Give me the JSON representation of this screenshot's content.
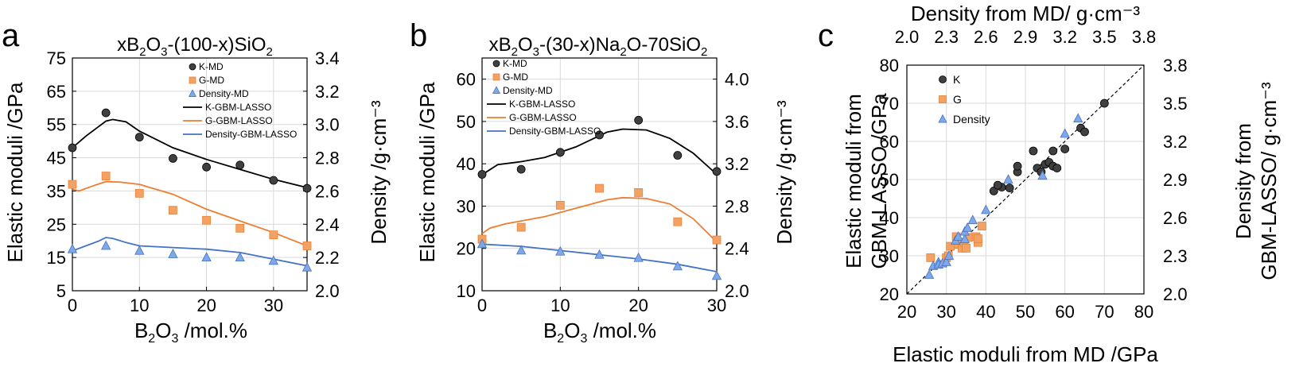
{
  "colors": {
    "k": "#404040",
    "g": "#F4A263",
    "density": "#7FA8E8",
    "k_line": "#000000",
    "g_line": "#EE7D31",
    "density_line": "#4472C4",
    "grid": "#d9d9d9"
  },
  "chart_data": [
    {
      "type": "scatter",
      "panel": "a",
      "title_parts": [
        "xB",
        "2",
        "O",
        "3",
        "-(100-x)SiO",
        "2"
      ],
      "xlabel_parts": [
        "B",
        "2",
        "O",
        "3",
        " /mol.%"
      ],
      "ylabel_left": "Elastic moduli /GPa",
      "ylabel_right": "Density /g·cm⁻³",
      "xlim": [
        0,
        35
      ],
      "xticks": [
        0,
        10,
        20,
        30
      ],
      "ylim_left": [
        5,
        75
      ],
      "yticks_left": [
        5,
        15,
        25,
        35,
        45,
        55,
        65,
        75
      ],
      "ylim_right": [
        2.0,
        3.4
      ],
      "yticks_right": [
        "2.0",
        "2.2",
        "2.4",
        "2.6",
        "2.8",
        "3.0",
        "3.2",
        "3.4"
      ],
      "legend": [
        "K-MD",
        "G-MD",
        "Density-MD",
        "K-GBM-LASSO",
        "G-GBM-LASSO",
        "Density-GBM-LASSO"
      ],
      "series": [
        {
          "name": "K-MD",
          "axis": "left",
          "marker": "circle",
          "x": [
            0,
            5,
            10,
            15,
            20,
            25,
            30,
            35
          ],
          "y": [
            48,
            58.5,
            51.2,
            44.8,
            42.2,
            42.8,
            38.2,
            35.8
          ]
        },
        {
          "name": "G-MD",
          "axis": "left",
          "marker": "square",
          "x": [
            0,
            5,
            10,
            15,
            20,
            25,
            30,
            35
          ],
          "y": [
            37,
            39.5,
            34.3,
            29.2,
            26.2,
            23.8,
            21.8,
            18.5
          ]
        },
        {
          "name": "Density-MD",
          "axis": "right",
          "marker": "triangle",
          "x": [
            0,
            5,
            10,
            15,
            20,
            25,
            30,
            35
          ],
          "y": [
            2.25,
            2.27,
            2.24,
            2.22,
            2.2,
            2.2,
            2.18,
            2.14
          ]
        },
        {
          "name": "K-GBM-LASSO",
          "axis": "left",
          "line": true,
          "x": [
            0,
            2,
            4,
            5,
            6,
            8,
            10,
            15,
            20,
            25,
            30,
            35
          ],
          "y": [
            48,
            51.5,
            54.5,
            56,
            56.5,
            55.8,
            53,
            48,
            44.5,
            41.5,
            38.5,
            36
          ]
        },
        {
          "name": "G-GBM-LASSO",
          "axis": "left",
          "line": true,
          "x": [
            0,
            1,
            3,
            5,
            7,
            10,
            15,
            20,
            25,
            30,
            35
          ],
          "y": [
            35.5,
            35,
            36.5,
            37.8,
            37.7,
            37,
            34,
            29.5,
            26,
            22.5,
            18.5
          ]
        },
        {
          "name": "Density-GBM-LASSO",
          "axis": "right",
          "line": true,
          "x": [
            0,
            2,
            4,
            5,
            6,
            8,
            10,
            15,
            20,
            25,
            30,
            35
          ],
          "y": [
            2.24,
            2.27,
            2.3,
            2.32,
            2.315,
            2.29,
            2.27,
            2.26,
            2.25,
            2.23,
            2.19,
            2.15
          ]
        }
      ]
    },
    {
      "type": "scatter",
      "panel": "b",
      "title_parts": [
        "xB",
        "2",
        "O",
        "3",
        "-(30-x)Na",
        "2",
        "O-70SiO",
        "2"
      ],
      "xlabel_parts": [
        "B",
        "2",
        "O",
        "3",
        " /mol.%"
      ],
      "ylabel_left": "Elastic moduli /GPa",
      "ylabel_right": "Density /g·cm⁻³",
      "xlim": [
        0,
        30
      ],
      "xticks": [
        0,
        10,
        20,
        30
      ],
      "ylim_left": [
        10,
        65
      ],
      "yticks_left": [
        10,
        20,
        30,
        40,
        50,
        60
      ],
      "ylim_right": [
        2.0,
        4.2
      ],
      "yticks_right": [
        "2.0",
        "2.4",
        "2.8",
        "3.2",
        "3.6",
        "4.0"
      ],
      "legend": [
        "K-MD",
        "G-MD",
        "Density-MD",
        "K-GBM-LASSO",
        "G-GBM-LASSO",
        "Density-GBM-LASSO"
      ],
      "series": [
        {
          "name": "K-MD",
          "axis": "left",
          "marker": "circle",
          "x": [
            0,
            5,
            10,
            15,
            20,
            25,
            30
          ],
          "y": [
            37.5,
            38.7,
            42.7,
            46.8,
            50.3,
            42,
            38.2
          ]
        },
        {
          "name": "G-MD",
          "axis": "left",
          "marker": "square",
          "x": [
            0,
            5,
            10,
            15,
            20,
            25,
            30
          ],
          "y": [
            22.2,
            25,
            30.2,
            34.2,
            33.2,
            26.3,
            22
          ]
        },
        {
          "name": "Density-MD",
          "axis": "right",
          "marker": "triangle",
          "x": [
            0,
            5,
            10,
            15,
            20,
            25,
            30
          ],
          "y": [
            2.44,
            2.38,
            2.37,
            2.34,
            2.31,
            2.23,
            2.14
          ]
        },
        {
          "name": "K-GBM-LASSO",
          "axis": "left",
          "line": true,
          "x": [
            0,
            0.5,
            2,
            5,
            8,
            12,
            16,
            18,
            21,
            24,
            27,
            30
          ],
          "y": [
            37.5,
            38,
            39.8,
            40.5,
            41.5,
            44,
            47.5,
            48.2,
            48,
            46,
            42.5,
            37.5
          ]
        },
        {
          "name": "G-GBM-LASSO",
          "axis": "left",
          "line": true,
          "x": [
            0,
            1,
            3,
            5,
            8,
            12,
            16,
            18,
            21,
            24,
            27,
            30
          ],
          "y": [
            23.5,
            24.8,
            25.8,
            26.5,
            27.5,
            29.5,
            31.5,
            32,
            31.8,
            30.5,
            27,
            21.5
          ]
        },
        {
          "name": "Density-GBM-LASSO",
          "axis": "right",
          "line": true,
          "x": [
            0,
            5,
            10,
            15,
            20,
            25,
            30
          ],
          "y": [
            2.44,
            2.42,
            2.38,
            2.34,
            2.3,
            2.25,
            2.18
          ]
        }
      ]
    },
    {
      "type": "scatter",
      "panel": "c",
      "xlabel": "Elastic moduli from MD /GPa",
      "xlabel_top": "Density from MD/ g·cm⁻³",
      "ylabel_left_lines": [
        "Elastic moduli from",
        "GBM-LASSO /GPa"
      ],
      "ylabel_right_lines": [
        "Density from",
        "GBM-LASSO/ g·cm⁻³"
      ],
      "xlim": [
        20,
        80
      ],
      "xticks": [
        20,
        30,
        40,
        50,
        60,
        70,
        80
      ],
      "ylim": [
        20,
        80
      ],
      "yticks": [
        20,
        30,
        40,
        50,
        60,
        70,
        80
      ],
      "top_ticks": [
        "2.0",
        "2.3",
        "2.6",
        "2.9",
        "3.2",
        "3.5",
        "3.8"
      ],
      "right_ticks": [
        "2.0",
        "2.3",
        "2.6",
        "2.9",
        "3.2",
        "3.5",
        "3.8"
      ],
      "density_range": [
        2.0,
        3.8
      ],
      "legend": [
        "K",
        "G",
        "Density"
      ],
      "series": [
        {
          "name": "K",
          "marker": "circle",
          "x": [
            42,
            44,
            43,
            46,
            48,
            48,
            52,
            53,
            54,
            55,
            56,
            57,
            57,
            58,
            60,
            64,
            65,
            70
          ],
          "y": [
            47,
            48,
            48.5,
            47.8,
            52,
            53.5,
            57.5,
            53,
            52,
            54,
            54.5,
            57.5,
            53.5,
            53,
            58,
            63.5,
            62.5,
            70
          ]
        },
        {
          "name": "G",
          "marker": "square",
          "x": [
            26,
            30,
            30.5,
            31,
            32.5,
            33,
            34,
            34.5,
            35,
            35.5,
            37.5,
            38,
            38,
            39
          ],
          "y": [
            29.5,
            29.5,
            30,
            32.5,
            35,
            33,
            32,
            33.5,
            32,
            34.8,
            35,
            33.5,
            34.5,
            37.8
          ]
        },
        {
          "name": "Density",
          "marker": "triangle",
          "x": [
            2.17,
            2.2,
            2.24,
            2.24,
            2.27,
            2.3,
            2.32,
            2.37,
            2.39,
            2.44,
            2.44,
            2.46,
            2.5,
            2.6,
            2.77,
            3.03,
            3.2,
            3.3
          ],
          "y": [
            2.15,
            2.22,
            2.25,
            2.23,
            2.24,
            2.25,
            2.3,
            2.42,
            2.45,
            2.43,
            2.49,
            2.52,
            2.58,
            2.66,
            2.9,
            2.93,
            3.26,
            3.38
          ]
        }
      ]
    }
  ]
}
